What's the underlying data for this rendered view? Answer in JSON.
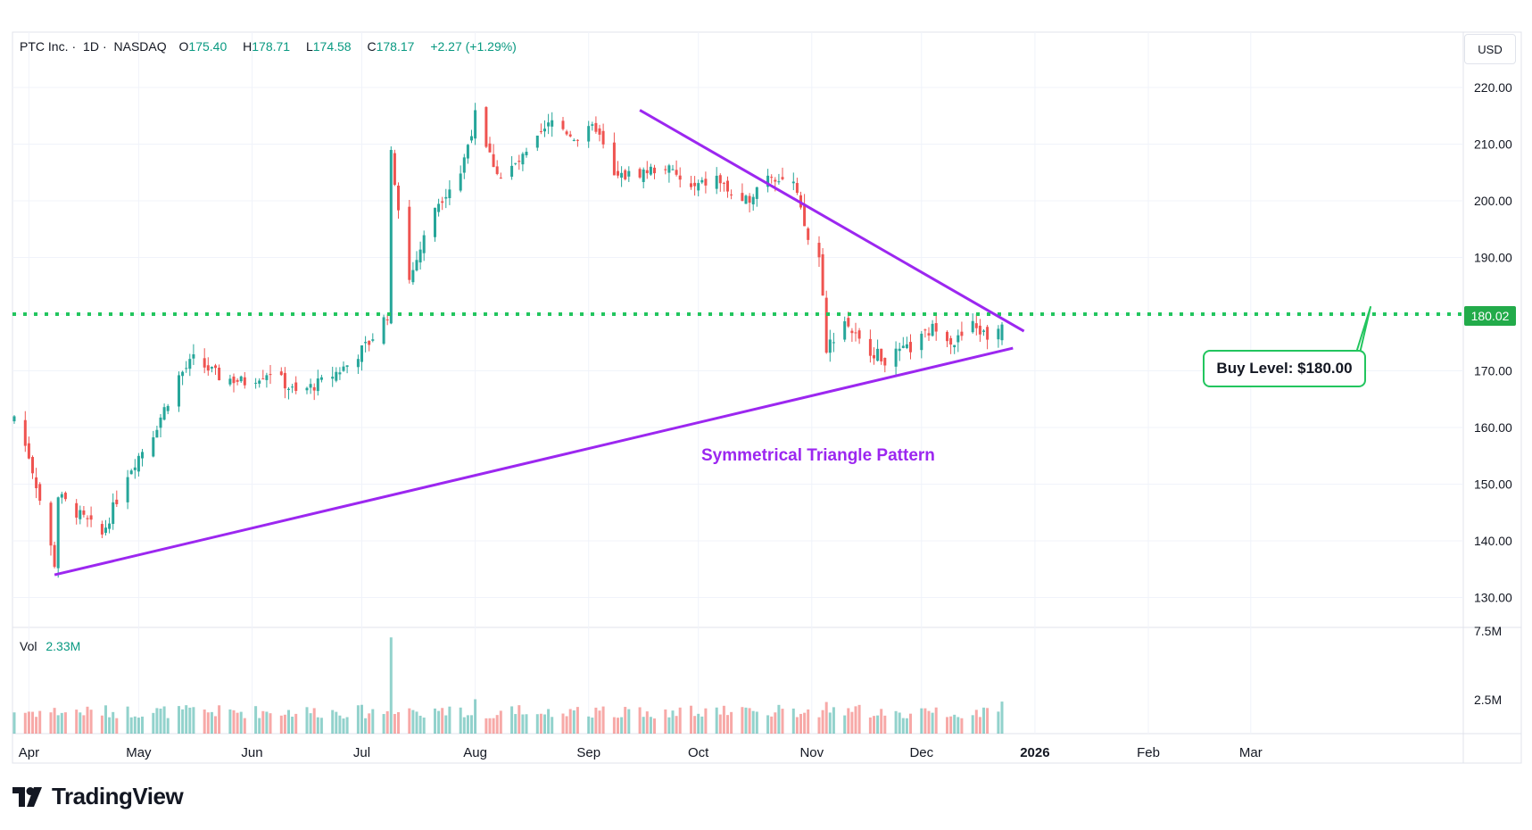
{
  "header": {
    "symbol": "PTC Inc.",
    "interval": "1D",
    "exchange": "NASDAQ",
    "open_label": "O",
    "open": "175.40",
    "high_label": "H",
    "high": "178.71",
    "low_label": "L",
    "low": "174.58",
    "close_label": "C",
    "close": "178.17",
    "change": "+2.27 (+1.29%)"
  },
  "currency": "USD",
  "volume": {
    "label": "Vol",
    "value": "2.33M"
  },
  "buy_level": {
    "label": "Buy Level: $180.00",
    "price_tag": "180.02"
  },
  "pattern_label": "Symmetrical Triangle Pattern",
  "brand": "TradingView",
  "colors": {
    "up": "#26a69a",
    "down": "#ef5350",
    "trendline": "#9c27f0",
    "level": "#22c55e"
  },
  "chart_data": {
    "type": "candlestick",
    "y_axis": {
      "range": [
        124,
        225
      ],
      "ticks": [
        "220.00",
        "210.00",
        "200.00",
        "190.00",
        "180.00",
        "170.00",
        "160.00",
        "150.00",
        "140.00",
        "130.00"
      ]
    },
    "volume_axis": {
      "ticks": [
        "7.5M",
        "2.5M"
      ]
    },
    "x_axis": {
      "ticks": [
        "Apr",
        "May",
        "Jun",
        "Jul",
        "Aug",
        "Sep",
        "Oct",
        "Nov",
        "Dec",
        "2026",
        "Feb",
        "Mar"
      ]
    },
    "buy_level_price": 180.0,
    "trendlines": [
      {
        "name": "upper",
        "from": [
          "2025-09-15",
          216
        ],
        "to": [
          "2025-12-29",
          177
        ]
      },
      {
        "name": "lower",
        "from": [
          "2025-04-08",
          134
        ],
        "to": [
          "2025-12-26",
          174
        ]
      }
    ],
    "anchors": [
      [
        "2025-03-28",
        162.0
      ],
      [
        "2025-04-01",
        155.0
      ],
      [
        "2025-04-03",
        150.0
      ],
      [
        "2025-04-08",
        136.0
      ],
      [
        "2025-04-09",
        148.0
      ],
      [
        "2025-04-14",
        145.0
      ],
      [
        "2025-04-21",
        141.0
      ],
      [
        "2025-04-28",
        152.0
      ],
      [
        "2025-05-05",
        159.0
      ],
      [
        "2025-05-12",
        169.0
      ],
      [
        "2025-05-16",
        172.0
      ],
      [
        "2025-05-23",
        169.0
      ],
      [
        "2025-05-30",
        168.0
      ],
      [
        "2025-06-06",
        170.0
      ],
      [
        "2025-06-13",
        166.0
      ],
      [
        "2025-06-20",
        168.0
      ],
      [
        "2025-06-27",
        171.0
      ],
      [
        "2025-07-03",
        175.0
      ],
      [
        "2025-07-08",
        180.0
      ],
      [
        "2025-07-09",
        208.0
      ],
      [
        "2025-07-14",
        186.0
      ],
      [
        "2025-07-21",
        199.0
      ],
      [
        "2025-07-28",
        205.0
      ],
      [
        "2025-08-01",
        215.0
      ],
      [
        "2025-08-05",
        208.0
      ],
      [
        "2025-08-08",
        204.0
      ],
      [
        "2025-08-15",
        208.0
      ],
      [
        "2025-08-22",
        214.0
      ],
      [
        "2025-08-29",
        211.0
      ],
      [
        "2025-09-03",
        213.0
      ],
      [
        "2025-09-08",
        204.0
      ],
      [
        "2025-09-15",
        205.0
      ],
      [
        "2025-09-22",
        206.0
      ],
      [
        "2025-09-29",
        202.0
      ],
      [
        "2025-10-06",
        204.0
      ],
      [
        "2025-10-13",
        199.0
      ],
      [
        "2025-10-20",
        205.0
      ],
      [
        "2025-10-27",
        203.0
      ],
      [
        "2025-10-31",
        193.0
      ],
      [
        "2025-11-03",
        190.0
      ],
      [
        "2025-11-04",
        183.0
      ],
      [
        "2025-11-05",
        174.0
      ],
      [
        "2025-11-10",
        179.0
      ],
      [
        "2025-11-14",
        175.0
      ],
      [
        "2025-11-21",
        172.0
      ],
      [
        "2025-11-28",
        174.0
      ],
      [
        "2025-12-05",
        178.0
      ],
      [
        "2025-12-10",
        175.0
      ],
      [
        "2025-12-15",
        178.0
      ],
      [
        "2025-12-19",
        176.0
      ],
      [
        "2025-12-23",
        178.17
      ]
    ],
    "volume_spikes": [
      [
        "2025-07-09",
        7.0
      ],
      [
        "2025-08-01",
        2.5
      ],
      [
        "2025-11-05",
        2.3
      ],
      [
        "2025-12-23",
        2.33
      ]
    ]
  }
}
